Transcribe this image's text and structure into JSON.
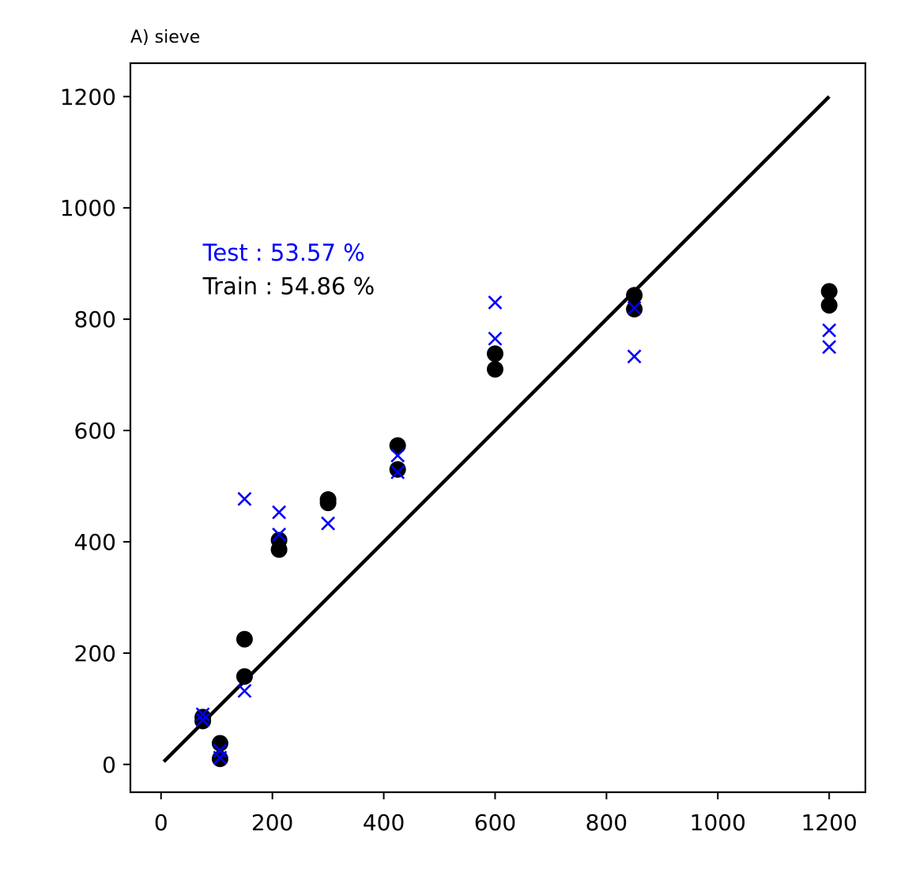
{
  "chart_data": {
    "type": "scatter",
    "title": "A) sieve",
    "xlabel": "",
    "ylabel": "",
    "xlim": [
      -55,
      1265
    ],
    "ylim": [
      -50,
      1260
    ],
    "xticks": [
      0,
      200,
      400,
      600,
      800,
      1000,
      1200
    ],
    "yticks": [
      0,
      200,
      400,
      600,
      800,
      1000,
      1200
    ],
    "grid": false,
    "reference_line": {
      "x": [
        5,
        1200
      ],
      "y": [
        5,
        1200
      ],
      "color": "#000000"
    },
    "annotations": [
      {
        "text": "Test : 53.57 %",
        "color": "#0000ff",
        "x": 75,
        "y": 905
      },
      {
        "text": "Train : 54.86 %",
        "color": "#000000",
        "x": 75,
        "y": 845
      }
    ],
    "series": [
      {
        "marker": "circle",
        "color": "#000000",
        "points": [
          [
            75,
            78
          ],
          [
            75,
            85
          ],
          [
            106,
            38
          ],
          [
            106,
            10
          ],
          [
            150,
            225
          ],
          [
            150,
            158
          ],
          [
            212,
            403
          ],
          [
            212,
            386
          ],
          [
            300,
            470
          ],
          [
            300,
            476
          ],
          [
            425,
            573
          ],
          [
            425,
            530
          ],
          [
            600,
            738
          ],
          [
            600,
            710
          ],
          [
            850,
            843
          ],
          [
            850,
            818
          ],
          [
            1200,
            850
          ],
          [
            1200,
            825
          ]
        ]
      },
      {
        "marker": "x",
        "color": "#0000ff",
        "points": [
          [
            75,
            90
          ],
          [
            75,
            80
          ],
          [
            106,
            25
          ],
          [
            106,
            12
          ],
          [
            150,
            477
          ],
          [
            150,
            132
          ],
          [
            212,
            453
          ],
          [
            212,
            413
          ],
          [
            300,
            433
          ],
          [
            425,
            555
          ],
          [
            425,
            525
          ],
          [
            600,
            830
          ],
          [
            600,
            765
          ],
          [
            850,
            820
          ],
          [
            850,
            733
          ],
          [
            1200,
            780
          ],
          [
            1200,
            750
          ]
        ]
      }
    ]
  }
}
